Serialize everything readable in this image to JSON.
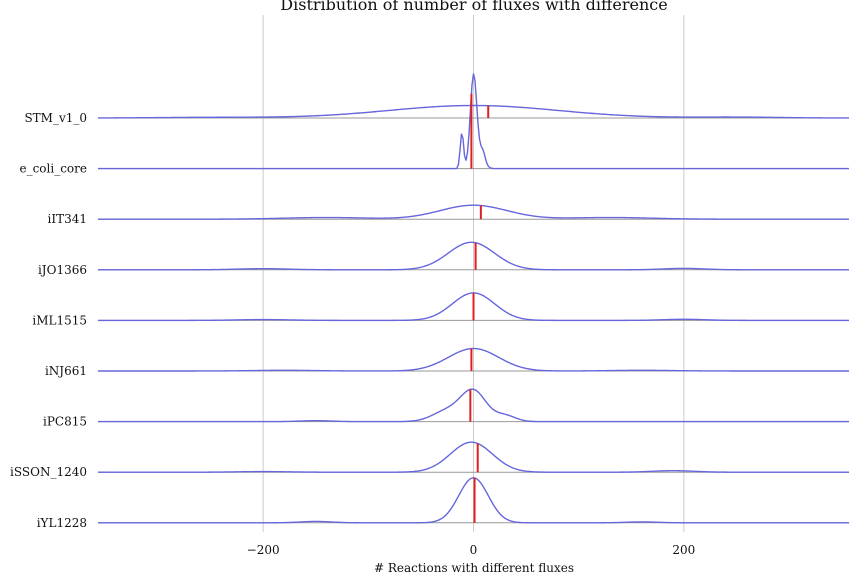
{
  "chart_data": {
    "type": "ridgeline",
    "title": "Distribution of number of fluxes with difference",
    "xlabel": "# Reactions with different fluxes",
    "ylabel": "",
    "xlim": [
      -357,
      357
    ],
    "xticks": [
      -200,
      0,
      200
    ],
    "xtick_labels": [
      "−200",
      "0",
      "200"
    ],
    "grid": "vertical",
    "line_color": "#6666dd",
    "median_color": "#e02020",
    "baseline_color": "#999999",
    "grid_color": "#cccccc",
    "series": [
      {
        "name": "STM_v1_0",
        "median": 14,
        "peak": 0.25,
        "components": [
          {
            "mu": 0,
            "sigma": 80,
            "w": 1.0
          },
          {
            "mu": -250,
            "sigma": 50,
            "w": 0.05
          },
          {
            "mu": 250,
            "sigma": 40,
            "w": 0.07
          }
        ]
      },
      {
        "name": "e_coli_core",
        "median": -2,
        "peak": 1.9,
        "components": [
          {
            "mu": 0,
            "sigma": 3,
            "w": 1.0
          },
          {
            "mu": -11,
            "sigma": 1.6,
            "w": 0.42
          },
          {
            "mu": 9,
            "sigma": 2.2,
            "w": 0.12
          },
          {
            "mu": 4,
            "sigma": 5,
            "w": 0.15
          }
        ]
      },
      {
        "name": "iIT341",
        "median": 7,
        "peak": 0.28,
        "components": [
          {
            "mu": 0,
            "sigma": 32,
            "w": 1.0
          },
          {
            "mu": -140,
            "sigma": 40,
            "w": 0.12
          },
          {
            "mu": 130,
            "sigma": 40,
            "w": 0.12
          }
        ]
      },
      {
        "name": "iJO1366",
        "median": 2,
        "peak": 0.55,
        "components": [
          {
            "mu": -2,
            "sigma": 22,
            "w": 1.0
          },
          {
            "mu": -200,
            "sigma": 25,
            "w": 0.04
          },
          {
            "mu": 200,
            "sigma": 20,
            "w": 0.05
          }
        ]
      },
      {
        "name": "iML1515",
        "median": 0,
        "peak": 0.55,
        "components": [
          {
            "mu": 0,
            "sigma": 20,
            "w": 1.0
          },
          {
            "mu": -200,
            "sigma": 25,
            "w": 0.03
          },
          {
            "mu": 200,
            "sigma": 20,
            "w": 0.04
          }
        ]
      },
      {
        "name": "iNJ661",
        "median": -2,
        "peak": 0.45,
        "components": [
          {
            "mu": 0,
            "sigma": 24,
            "w": 1.0
          },
          {
            "mu": -180,
            "sigma": 30,
            "w": 0.03
          },
          {
            "mu": 160,
            "sigma": 30,
            "w": 0.03
          }
        ]
      },
      {
        "name": "iPC815",
        "median": -3,
        "peak": 0.65,
        "components": [
          {
            "mu": 0,
            "sigma": 12,
            "w": 1.0
          },
          {
            "mu": -25,
            "sigma": 14,
            "w": 0.35
          },
          {
            "mu": 30,
            "sigma": 10,
            "w": 0.2
          },
          {
            "mu": -150,
            "sigma": 15,
            "w": 0.03
          }
        ]
      },
      {
        "name": "iSSON_1240",
        "median": 4,
        "peak": 0.6,
        "components": [
          {
            "mu": -2,
            "sigma": 20,
            "w": 1.0
          },
          {
            "mu": -200,
            "sigma": 25,
            "w": 0.02
          },
          {
            "mu": 190,
            "sigma": 20,
            "w": 0.05
          }
        ]
      },
      {
        "name": "iYL1228",
        "median": 1,
        "peak": 0.9,
        "components": [
          {
            "mu": 0,
            "sigma": 14,
            "w": 1.0
          },
          {
            "mu": -150,
            "sigma": 15,
            "w": 0.03
          },
          {
            "mu": 160,
            "sigma": 15,
            "w": 0.02
          }
        ]
      }
    ]
  }
}
